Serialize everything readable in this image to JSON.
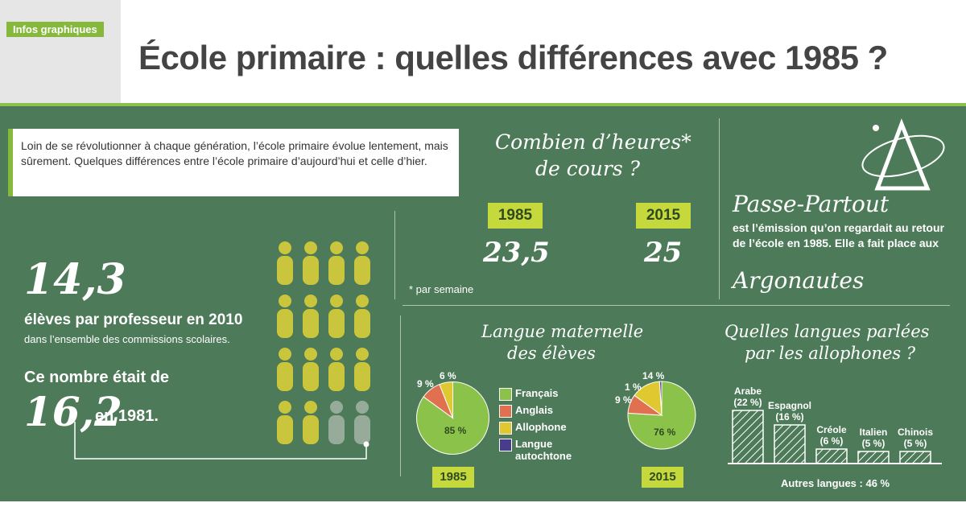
{
  "header": {
    "tag": "Infos graphiques",
    "title": "École primaire : quelles différences avec 1985 ?"
  },
  "intro": "Loin de se révolutionner à chaque génération, l’école primaire évolue lentement, mais sûrement. Quelques différences entre l’école primaire d’aujourd’hui et celle d’hier.",
  "ratio": {
    "value_2010": "14,3",
    "line1": "élèves par professeur en 2010",
    "line2": "dans l’ensemble des commissions scolaires.",
    "line3": "Ce nombre était de",
    "value_1981": "16,2",
    "line4": "en 1981."
  },
  "hours": {
    "heading1": "Combien d’heures*",
    "heading2": "de cours ?",
    "year_a": "1985",
    "value_a": "23,5",
    "year_b": "2015",
    "value_b": "25",
    "note": "* par semaine"
  },
  "tv": {
    "name": "Passe-Partout",
    "text": "est l’émission qu’on regardait au retour de l’école en 1985. Elle a fait place aux",
    "successor": "Argonautes"
  },
  "languages": {
    "heading1": "Langue maternelle",
    "heading2": "des élèves",
    "legend": [
      "Français",
      "Anglais",
      "Allophone",
      "Langue",
      "autochtone"
    ],
    "year_a": "1985",
    "year_b": "2015",
    "pie_a_labels": {
      "fr": "85 %",
      "en": "9 %",
      "allo": "6 %"
    },
    "pie_b_labels": {
      "fr": "76 %",
      "en": "9 %",
      "allo": "14 %",
      "auto": "1 %"
    },
    "colors": {
      "fr": "#8bc34a",
      "en": "#e07050",
      "allo": "#e0c830",
      "auto": "#4a3c8c"
    }
  },
  "allophones": {
    "heading1": "Quelles langues parlées",
    "heading2": "par les allophones ?",
    "footer": "Autres langues : 46 %"
  },
  "chart_data": [
    {
      "type": "pie",
      "title": "1985",
      "categories": [
        "Français",
        "Anglais",
        "Allophone"
      ],
      "values": [
        85,
        9,
        6
      ]
    },
    {
      "type": "pie",
      "title": "2015",
      "categories": [
        "Français",
        "Anglais",
        "Allophone",
        "Langue autochtone"
      ],
      "values": [
        76,
        9,
        14,
        1
      ]
    },
    {
      "type": "bar",
      "categories": [
        "Arabe",
        "Espagnol",
        "Créole",
        "Italien",
        "Chinois"
      ],
      "values": [
        22,
        16,
        6,
        5,
        5
      ],
      "value_labels": [
        "(22 %)",
        "(16 %)",
        "(6 %)",
        "(5 %)",
        "(5 %)"
      ]
    }
  ]
}
